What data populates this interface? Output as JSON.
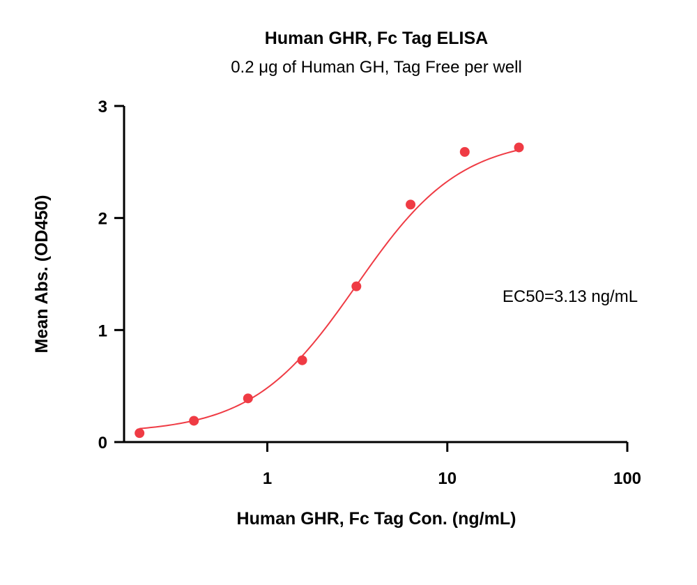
{
  "chart_data": {
    "type": "scatter",
    "title": "Human GHR, Fc Tag ELISA",
    "subtitle": "0.2 μg of Human GH, Tag Free per well",
    "xlabel": "Human GHR, Fc Tag Con. (ng/mL)",
    "ylabel": "Mean Abs. (OD450)",
    "x_scale": "log",
    "xlim": [
      0.16,
      100
    ],
    "ylim": [
      0,
      3
    ],
    "x_ticks": [
      1,
      10,
      100
    ],
    "x_tick_labels": [
      "1",
      "10",
      "100"
    ],
    "y_ticks": [
      0,
      1,
      2,
      3
    ],
    "y_tick_labels": [
      "0",
      "1",
      "2",
      "3"
    ],
    "grid": false,
    "legend": false,
    "series": [
      {
        "x": [
          0.195,
          0.391,
          0.781,
          1.563,
          3.125,
          6.25,
          12.5,
          25
        ],
        "y": [
          0.08,
          0.19,
          0.39,
          0.73,
          1.39,
          2.12,
          2.59,
          2.63
        ]
      }
    ],
    "fit": {
      "model": "4PL",
      "bottom": 0.08,
      "top": 2.72,
      "ec50": 3.13,
      "hill": 1.5
    },
    "annotation": "EC50=3.13 ng/mL",
    "colors": {
      "series": "#ef3b44",
      "axis": "#000000"
    }
  }
}
